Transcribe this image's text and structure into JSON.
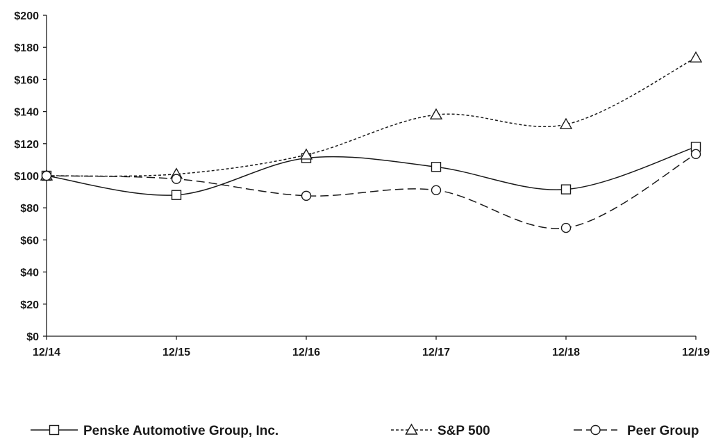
{
  "chart_data": {
    "type": "line",
    "x": [
      "12/14",
      "12/15",
      "12/16",
      "12/17",
      "12/18",
      "12/19"
    ],
    "ylim": [
      0,
      200
    ],
    "ytick_values": [
      0,
      20,
      40,
      60,
      80,
      100,
      120,
      140,
      160,
      180,
      200
    ],
    "ytick_labels": [
      "$0",
      "$20",
      "$40",
      "$60",
      "$80",
      "$100",
      "$120",
      "$140",
      "$160",
      "$180",
      "$200"
    ],
    "grid": false,
    "legend_position": "bottom",
    "series": [
      {
        "name": "Penske Automotive Group, Inc.",
        "marker": "square",
        "line_style": "solid",
        "values": [
          100,
          88,
          111,
          105.5,
          91.5,
          118
        ]
      },
      {
        "name": "S&P 500",
        "marker": "triangle",
        "line_style": "dotted",
        "values": [
          100,
          101,
          113,
          138,
          132,
          173.5
        ]
      },
      {
        "name": "Peer Group",
        "marker": "circle",
        "line_style": "dashed",
        "values": [
          100,
          98,
          87.5,
          91,
          67.5,
          113.5
        ]
      }
    ]
  }
}
